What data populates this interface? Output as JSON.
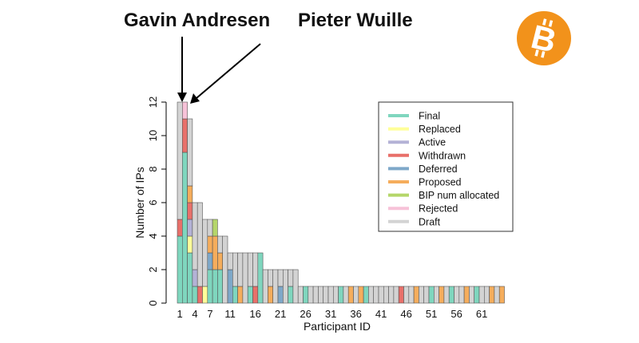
{
  "annotations": {
    "gavin": "Gavin Andresen",
    "pieter": "Pieter Wuille"
  },
  "logo": {
    "glyph": "B",
    "icon": "bitcoin-logo-icon",
    "color": "#f2921b"
  },
  "colors": {
    "Final": "#7fd6be",
    "Replaced": "#ffff99",
    "Active": "#b4b2d6",
    "Withdrawn": "#e8706a",
    "Deferred": "#7ea8c9",
    "Proposed": "#f5ad5c",
    "BIP num allocated": "#b5d66a",
    "Rejected": "#f7c2d8",
    "Draft": "#d3d3d3"
  },
  "chart_data": {
    "type": "bar",
    "stacked": true,
    "xlabel": "Participant ID",
    "ylabel": "Number of IPs",
    "ylim": [
      0,
      12
    ],
    "yticks": [
      0,
      2,
      4,
      6,
      8,
      10,
      12
    ],
    "xticks": [
      1,
      4,
      7,
      11,
      16,
      21,
      26,
      31,
      36,
      41,
      46,
      51,
      56,
      61
    ],
    "legend_position": "top-right",
    "legend": [
      "Final",
      "Replaced",
      "Active",
      "Withdrawn",
      "Deferred",
      "Proposed",
      "BIP num allocated",
      "Rejected",
      "Draft"
    ],
    "bars": [
      {
        "id": 1,
        "segments": [
          [
            "Final",
            4
          ],
          [
            "Withdrawn",
            1
          ],
          [
            "Draft",
            7
          ]
        ]
      },
      {
        "id": 2,
        "segments": [
          [
            "Final",
            9
          ],
          [
            "Withdrawn",
            2
          ],
          [
            "Rejected",
            1
          ]
        ]
      },
      {
        "id": 3,
        "segments": [
          [
            "Final",
            3
          ],
          [
            "Replaced",
            1
          ],
          [
            "Active",
            1
          ],
          [
            "Withdrawn",
            1
          ],
          [
            "Proposed",
            1
          ],
          [
            "Draft",
            4
          ]
        ]
      },
      {
        "id": 4,
        "segments": [
          [
            "Final",
            1
          ],
          [
            "Active",
            1
          ],
          [
            "Draft",
            4
          ]
        ]
      },
      {
        "id": 5,
        "segments": [
          [
            "Withdrawn",
            1
          ],
          [
            "Draft",
            5
          ]
        ]
      },
      {
        "id": 6,
        "segments": [
          [
            "Replaced",
            1
          ],
          [
            "Draft",
            4
          ]
        ]
      },
      {
        "id": 7,
        "segments": [
          [
            "Final",
            2
          ],
          [
            "Deferred",
            1
          ],
          [
            "Proposed",
            1
          ],
          [
            "Draft",
            1
          ]
        ]
      },
      {
        "id": 8,
        "segments": [
          [
            "Final",
            2
          ],
          [
            "Proposed",
            2
          ],
          [
            "BIP num allocated",
            1
          ]
        ]
      },
      {
        "id": 9,
        "segments": [
          [
            "Final",
            2
          ],
          [
            "Proposed",
            1
          ],
          [
            "Draft",
            1
          ]
        ]
      },
      {
        "id": 10,
        "segments": [
          [
            "Draft",
            4
          ]
        ]
      },
      {
        "id": 11,
        "segments": [
          [
            "Deferred",
            2
          ],
          [
            "Draft",
            1
          ]
        ]
      },
      {
        "id": 12,
        "segments": [
          [
            "Final",
            1
          ],
          [
            "Draft",
            2
          ]
        ]
      },
      {
        "id": 13,
        "segments": [
          [
            "Proposed",
            1
          ],
          [
            "Draft",
            2
          ]
        ]
      },
      {
        "id": 14,
        "segments": [
          [
            "Draft",
            3
          ]
        ]
      },
      {
        "id": 15,
        "segments": [
          [
            "Final",
            1
          ],
          [
            "Draft",
            2
          ]
        ]
      },
      {
        "id": 16,
        "segments": [
          [
            "Withdrawn",
            1
          ],
          [
            "Draft",
            2
          ]
        ]
      },
      {
        "id": 17,
        "segments": [
          [
            "Final",
            3
          ]
        ]
      },
      {
        "id": 18,
        "segments": [
          [
            "Draft",
            2
          ]
        ]
      },
      {
        "id": 19,
        "segments": [
          [
            "Proposed",
            1
          ],
          [
            "Draft",
            1
          ]
        ]
      },
      {
        "id": 20,
        "segments": [
          [
            "Draft",
            2
          ]
        ]
      },
      {
        "id": 21,
        "segments": [
          [
            "Deferred",
            1
          ],
          [
            "Draft",
            1
          ]
        ]
      },
      {
        "id": 22,
        "segments": [
          [
            "Draft",
            2
          ]
        ]
      },
      {
        "id": 23,
        "segments": [
          [
            "Final",
            1
          ],
          [
            "Draft",
            1
          ]
        ]
      },
      {
        "id": 24,
        "segments": [
          [
            "Draft",
            2
          ]
        ]
      },
      {
        "id": 25,
        "segments": [
          [
            "Draft",
            1
          ]
        ]
      },
      {
        "id": 26,
        "segments": [
          [
            "Final",
            1
          ]
        ]
      },
      {
        "id": 27,
        "segments": [
          [
            "Draft",
            1
          ]
        ]
      },
      {
        "id": 28,
        "segments": [
          [
            "Draft",
            1
          ]
        ]
      },
      {
        "id": 29,
        "segments": [
          [
            "Draft",
            1
          ]
        ]
      },
      {
        "id": 30,
        "segments": [
          [
            "Draft",
            1
          ]
        ]
      },
      {
        "id": 31,
        "segments": [
          [
            "Draft",
            1
          ]
        ]
      },
      {
        "id": 32,
        "segments": [
          [
            "Draft",
            1
          ]
        ]
      },
      {
        "id": 33,
        "segments": [
          [
            "Final",
            1
          ]
        ]
      },
      {
        "id": 34,
        "segments": [
          [
            "Draft",
            1
          ]
        ]
      },
      {
        "id": 35,
        "segments": [
          [
            "Proposed",
            1
          ]
        ]
      },
      {
        "id": 36,
        "segments": [
          [
            "Draft",
            1
          ]
        ]
      },
      {
        "id": 37,
        "segments": [
          [
            "Proposed",
            1
          ]
        ]
      },
      {
        "id": 38,
        "segments": [
          [
            "Final",
            1
          ]
        ]
      },
      {
        "id": 39,
        "segments": [
          [
            "Draft",
            1
          ]
        ]
      },
      {
        "id": 40,
        "segments": [
          [
            "Draft",
            1
          ]
        ]
      },
      {
        "id": 41,
        "segments": [
          [
            "Draft",
            1
          ]
        ]
      },
      {
        "id": 42,
        "segments": [
          [
            "Draft",
            1
          ]
        ]
      },
      {
        "id": 43,
        "segments": [
          [
            "Draft",
            1
          ]
        ]
      },
      {
        "id": 44,
        "segments": [
          [
            "Draft",
            1
          ]
        ]
      },
      {
        "id": 45,
        "segments": [
          [
            "Withdrawn",
            1
          ]
        ]
      },
      {
        "id": 46,
        "segments": [
          [
            "Draft",
            1
          ]
        ]
      },
      {
        "id": 47,
        "segments": [
          [
            "Draft",
            1
          ]
        ]
      },
      {
        "id": 48,
        "segments": [
          [
            "Proposed",
            1
          ]
        ]
      },
      {
        "id": 49,
        "segments": [
          [
            "Draft",
            1
          ]
        ]
      },
      {
        "id": 50,
        "segments": [
          [
            "Draft",
            1
          ]
        ]
      },
      {
        "id": 51,
        "segments": [
          [
            "Final",
            1
          ]
        ]
      },
      {
        "id": 52,
        "segments": [
          [
            "Draft",
            1
          ]
        ]
      },
      {
        "id": 53,
        "segments": [
          [
            "Proposed",
            1
          ]
        ]
      },
      {
        "id": 54,
        "segments": [
          [
            "Draft",
            1
          ]
        ]
      },
      {
        "id": 55,
        "segments": [
          [
            "Final",
            1
          ]
        ]
      },
      {
        "id": 56,
        "segments": [
          [
            "Draft",
            1
          ]
        ]
      },
      {
        "id": 57,
        "segments": [
          [
            "Draft",
            1
          ]
        ]
      },
      {
        "id": 58,
        "segments": [
          [
            "Proposed",
            1
          ]
        ]
      },
      {
        "id": 59,
        "segments": [
          [
            "Draft",
            1
          ]
        ]
      },
      {
        "id": 60,
        "segments": [
          [
            "Final",
            1
          ]
        ]
      },
      {
        "id": 61,
        "segments": [
          [
            "Draft",
            1
          ]
        ]
      },
      {
        "id": 62,
        "segments": [
          [
            "Draft",
            1
          ]
        ]
      },
      {
        "id": 63,
        "segments": [
          [
            "Proposed",
            1
          ]
        ]
      },
      {
        "id": 64,
        "segments": [
          [
            "Draft",
            1
          ]
        ]
      },
      {
        "id": 65,
        "segments": [
          [
            "Proposed",
            1
          ]
        ]
      }
    ]
  }
}
